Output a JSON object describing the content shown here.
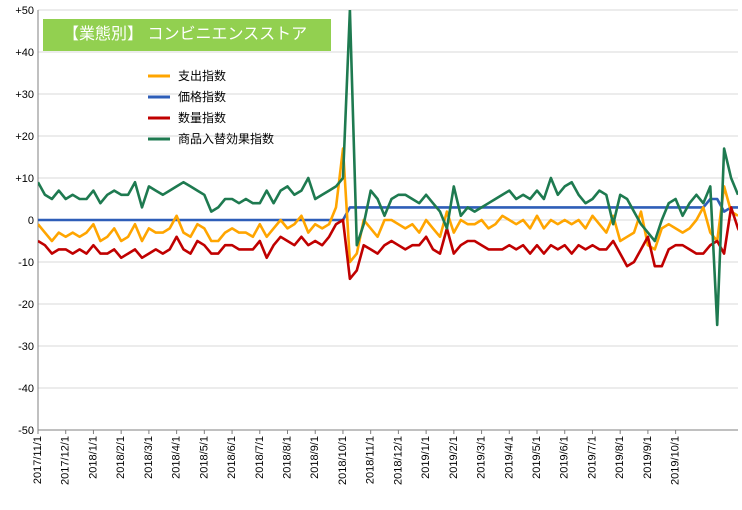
{
  "chart_data": {
    "type": "line",
    "title": "【業態別】 コンビニエンスストア",
    "ylim": [
      -50,
      50
    ],
    "yticks": [
      "+50",
      "+40",
      "+30",
      "+20",
      "+10",
      "0",
      "-10",
      "-20",
      "-30",
      "-40",
      "-50"
    ],
    "ytick_values": [
      50,
      40,
      30,
      20,
      10,
      0,
      -10,
      -20,
      -30,
      -40,
      -50
    ],
    "x_tick_labels": [
      "2017/11/1",
      "2017/12/1",
      "2018/1/1",
      "2018/2/1",
      "2018/3/1",
      "2018/4/1",
      "2018/5/1",
      "2018/6/1",
      "2018/7/1",
      "2018/8/1",
      "2018/9/1",
      "2018/10/1",
      "2018/11/1",
      "2018/12/1",
      "2019/1/1",
      "2019/2/1",
      "2019/3/1",
      "2019/4/1",
      "2019/5/1",
      "2019/6/1",
      "2019/7/1",
      "2019/8/1",
      "2019/9/1",
      "2019/10/1"
    ],
    "points_per_month": 4,
    "grid": true,
    "legend": "top-left",
    "series": [
      {
        "name": "支出指数",
        "color": "#ffa500",
        "values": [
          -1,
          -3,
          -5,
          -3,
          -4,
          -3,
          -4,
          -3,
          -1,
          -5,
          -4,
          -2,
          -5,
          -4,
          -1,
          -5,
          -2,
          -3,
          -3,
          -2,
          1,
          -3,
          -4,
          -1,
          -2,
          -5,
          -5,
          -3,
          -2,
          -3,
          -3,
          -4,
          -1,
          -4,
          -2,
          0,
          -2,
          -1,
          1,
          -3,
          -1,
          -2,
          -1,
          3,
          17,
          -10,
          -8,
          0,
          -2,
          -4,
          0,
          0,
          -1,
          -2,
          -1,
          -3,
          0,
          -2,
          -4,
          2,
          -3,
          0,
          -1,
          -1,
          0,
          -2,
          -1,
          1,
          0,
          -1,
          0,
          -2,
          1,
          -2,
          0,
          -1,
          0,
          -1,
          0,
          -2,
          1,
          -1,
          -3,
          1,
          -5,
          -4,
          -3,
          2,
          -6,
          -7,
          -2,
          -1,
          -2,
          -3,
          -2,
          0,
          3,
          -3,
          -5,
          8,
          2,
          1
        ],
        "name_color": "#000000"
      },
      {
        "name": "価格指数",
        "color": "#2e5eb8",
        "values": [
          0,
          0,
          0,
          0,
          0,
          0,
          0,
          0,
          0,
          0,
          0,
          0,
          0,
          0,
          0,
          0,
          0,
          0,
          0,
          0,
          0,
          0,
          0,
          0,
          0,
          0,
          0,
          0,
          0,
          0,
          0,
          0,
          0,
          0,
          0,
          0,
          0,
          0,
          0,
          0,
          0,
          0,
          0,
          0,
          0,
          3,
          3,
          3,
          3,
          3,
          3,
          3,
          3,
          3,
          3,
          3,
          3,
          3,
          3,
          3,
          3,
          3,
          3,
          3,
          3,
          3,
          3,
          3,
          3,
          3,
          3,
          3,
          3,
          3,
          3,
          3,
          3,
          3,
          3,
          3,
          3,
          3,
          3,
          3,
          3,
          3,
          3,
          3,
          3,
          3,
          3,
          3,
          3,
          3,
          3,
          3,
          3,
          5,
          5,
          2,
          3,
          3,
          3
        ]
      },
      {
        "name": "数量指数",
        "color": "#c00000",
        "values": [
          -5,
          -6,
          -8,
          -7,
          -7,
          -8,
          -7,
          -8,
          -6,
          -8,
          -8,
          -7,
          -9,
          -8,
          -7,
          -9,
          -8,
          -7,
          -8,
          -7,
          -4,
          -7,
          -8,
          -5,
          -6,
          -8,
          -8,
          -6,
          -6,
          -7,
          -7,
          -7,
          -5,
          -9,
          -6,
          -4,
          -5,
          -6,
          -4,
          -6,
          -5,
          -6,
          -4,
          -1,
          0,
          -14,
          -12,
          -6,
          -7,
          -8,
          -6,
          -5,
          -6,
          -7,
          -6,
          -6,
          -4,
          -7,
          -8,
          -2,
          -8,
          -6,
          -5,
          -5,
          -6,
          -7,
          -7,
          -7,
          -6,
          -7,
          -6,
          -8,
          -6,
          -8,
          -6,
          -7,
          -6,
          -8,
          -6,
          -7,
          -6,
          -7,
          -7,
          -5,
          -8,
          -11,
          -10,
          -7,
          -4,
          -11,
          -11,
          -7,
          -6,
          -6,
          -7,
          -8,
          -8,
          -6,
          -5,
          -8,
          3,
          -2,
          -5
        ]
      },
      {
        "name": "商品入替効果指数",
        "color": "#1e7a50",
        "values": [
          9,
          6,
          5,
          7,
          5,
          6,
          5,
          5,
          7,
          4,
          6,
          7,
          6,
          6,
          9,
          3,
          8,
          7,
          6,
          7,
          8,
          9,
          8,
          7,
          6,
          2,
          3,
          5,
          5,
          4,
          5,
          4,
          4,
          7,
          4,
          7,
          8,
          6,
          7,
          10,
          5,
          6,
          7,
          8,
          10,
          50,
          -6,
          -1,
          7,
          5,
          1,
          5,
          6,
          6,
          5,
          4,
          6,
          4,
          2,
          -2,
          8,
          1,
          3,
          2,
          3,
          4,
          5,
          6,
          7,
          5,
          6,
          5,
          7,
          5,
          10,
          6,
          8,
          9,
          6,
          4,
          5,
          7,
          6,
          -1,
          6,
          5,
          2,
          -1,
          -3,
          -5,
          0,
          4,
          5,
          1,
          4,
          6,
          4,
          8,
          -25,
          17,
          10,
          6
        ]
      }
    ]
  }
}
